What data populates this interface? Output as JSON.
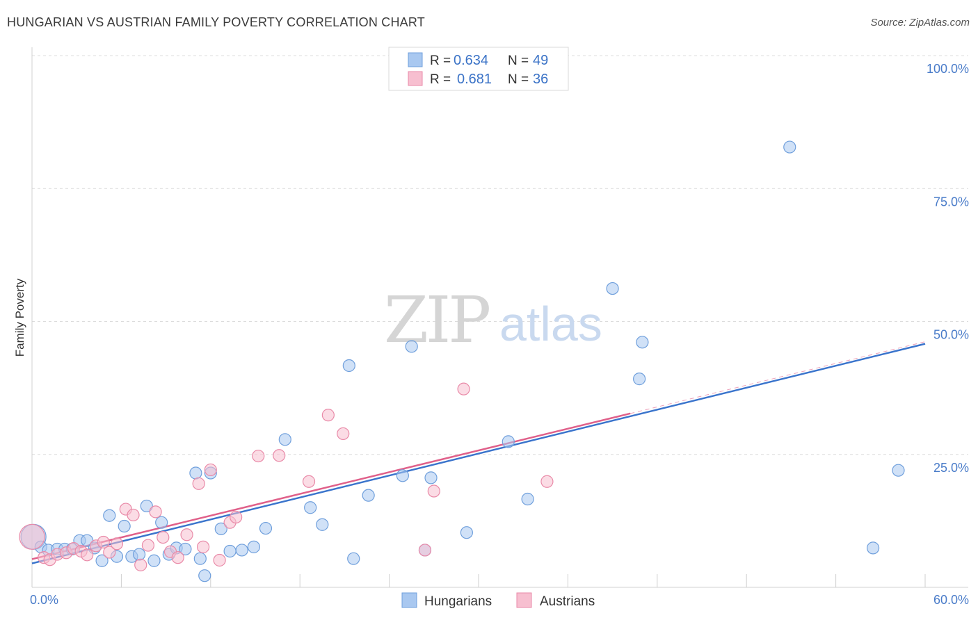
{
  "title": "HUNGARIAN VS AUSTRIAN FAMILY POVERTY CORRELATION CHART",
  "source": "Source: ZipAtlas.com",
  "watermark": {
    "part1": "ZIP",
    "part2": "atlas"
  },
  "colors": {
    "hungarians_fill": "#a9c8f0",
    "hungarians_stroke": "#6f9fdc",
    "hungarians_line": "#3a74cc",
    "austrians_fill": "#f7bfd0",
    "austrians_stroke": "#e98aa8",
    "austrians_line": "#e0608a",
    "grid": "#dcdcdc",
    "tick_label": "#4a7cc9"
  },
  "legend_box": {
    "rows": [
      {
        "r_label": "R =",
        "r_value": "0.634",
        "n_label": "N =",
        "n_value": "49"
      },
      {
        "r_label": "R =",
        "r_value": "0.681",
        "n_label": "N =",
        "n_value": "36"
      }
    ]
  },
  "chart_data": {
    "type": "scatter",
    "title": "HUNGARIAN VS AUSTRIAN FAMILY POVERTY CORRELATION CHART",
    "xlabel": "",
    "ylabel": "Family Poverty",
    "xlim": [
      0,
      60
    ],
    "ylim": [
      0,
      100
    ],
    "x_tick_labels": [
      "0.0%",
      "60.0%"
    ],
    "y_ticks": [
      25,
      50,
      75,
      100
    ],
    "y_tick_labels": [
      "25.0%",
      "50.0%",
      "75.0%",
      "100.0%"
    ],
    "legend_position": "bottom-center",
    "series": [
      {
        "name": "Hungarians",
        "r": 0.634,
        "n": 49,
        "trend": {
          "x0": 0,
          "y0": 4.5,
          "x1": 60,
          "y1": 45.8
        },
        "points": [
          [
            0.1,
            9.5
          ],
          [
            0.6,
            7.6
          ],
          [
            1.1,
            7.0
          ],
          [
            1.7,
            7.2
          ],
          [
            2.2,
            7.2
          ],
          [
            2.7,
            7.2
          ],
          [
            3.2,
            8.8
          ],
          [
            3.7,
            8.8
          ],
          [
            4.2,
            7.4
          ],
          [
            4.7,
            5.0
          ],
          [
            5.2,
            13.5
          ],
          [
            5.7,
            5.8
          ],
          [
            6.2,
            11.5
          ],
          [
            6.7,
            5.8
          ],
          [
            7.2,
            6.2
          ],
          [
            7.7,
            15.3
          ],
          [
            8.2,
            5.0
          ],
          [
            8.7,
            12.2
          ],
          [
            9.2,
            6.2
          ],
          [
            9.7,
            7.4
          ],
          [
            10.3,
            7.2
          ],
          [
            11.0,
            21.5
          ],
          [
            11.3,
            5.4
          ],
          [
            11.6,
            2.2
          ],
          [
            12.0,
            21.5
          ],
          [
            12.7,
            11.0
          ],
          [
            13.3,
            6.8
          ],
          [
            14.1,
            7.0
          ],
          [
            14.9,
            7.6
          ],
          [
            15.7,
            11.1
          ],
          [
            17.0,
            27.8
          ],
          [
            18.7,
            15.0
          ],
          [
            19.5,
            11.8
          ],
          [
            21.3,
            41.7
          ],
          [
            21.6,
            5.4
          ],
          [
            22.6,
            17.3
          ],
          [
            24.9,
            21.0
          ],
          [
            25.5,
            45.3
          ],
          [
            26.4,
            7.0
          ],
          [
            26.8,
            20.6
          ],
          [
            29.2,
            10.3
          ],
          [
            32.0,
            27.4
          ],
          [
            33.3,
            16.6
          ],
          [
            39.0,
            56.2
          ],
          [
            40.8,
            39.2
          ],
          [
            41.0,
            46.1
          ],
          [
            50.9,
            82.8
          ],
          [
            56.5,
            7.4
          ],
          [
            58.2,
            22.0
          ]
        ]
      },
      {
        "name": "Austrians",
        "r": 0.681,
        "n": 36,
        "trend": {
          "x0": 0,
          "y0": 5.3,
          "x1": 40.2,
          "y1": 32.7
        },
        "points": [
          [
            0.0,
            9.5
          ],
          [
            0.8,
            5.6
          ],
          [
            1.2,
            5.2
          ],
          [
            1.7,
            6.2
          ],
          [
            2.3,
            6.5
          ],
          [
            2.8,
            7.3
          ],
          [
            3.3,
            6.8
          ],
          [
            3.7,
            6.1
          ],
          [
            4.3,
            7.8
          ],
          [
            4.8,
            8.5
          ],
          [
            5.2,
            6.6
          ],
          [
            5.7,
            8.2
          ],
          [
            6.3,
            14.7
          ],
          [
            6.8,
            13.6
          ],
          [
            7.3,
            4.2
          ],
          [
            7.8,
            7.9
          ],
          [
            8.3,
            14.2
          ],
          [
            8.8,
            9.4
          ],
          [
            9.3,
            6.7
          ],
          [
            9.8,
            5.6
          ],
          [
            10.4,
            9.9
          ],
          [
            11.2,
            19.5
          ],
          [
            11.5,
            7.6
          ],
          [
            12.0,
            22.1
          ],
          [
            12.6,
            5.1
          ],
          [
            13.3,
            12.2
          ],
          [
            13.7,
            13.2
          ],
          [
            15.2,
            24.7
          ],
          [
            16.6,
            24.8
          ],
          [
            18.6,
            19.9
          ],
          [
            19.9,
            32.4
          ],
          [
            20.9,
            28.9
          ],
          [
            26.4,
            7.0
          ],
          [
            27.0,
            18.1
          ],
          [
            29.0,
            37.3
          ],
          [
            34.6,
            19.9
          ]
        ]
      }
    ]
  },
  "bottom_legend": {
    "hungarians": "Hungarians",
    "austrians": "Austrians"
  }
}
